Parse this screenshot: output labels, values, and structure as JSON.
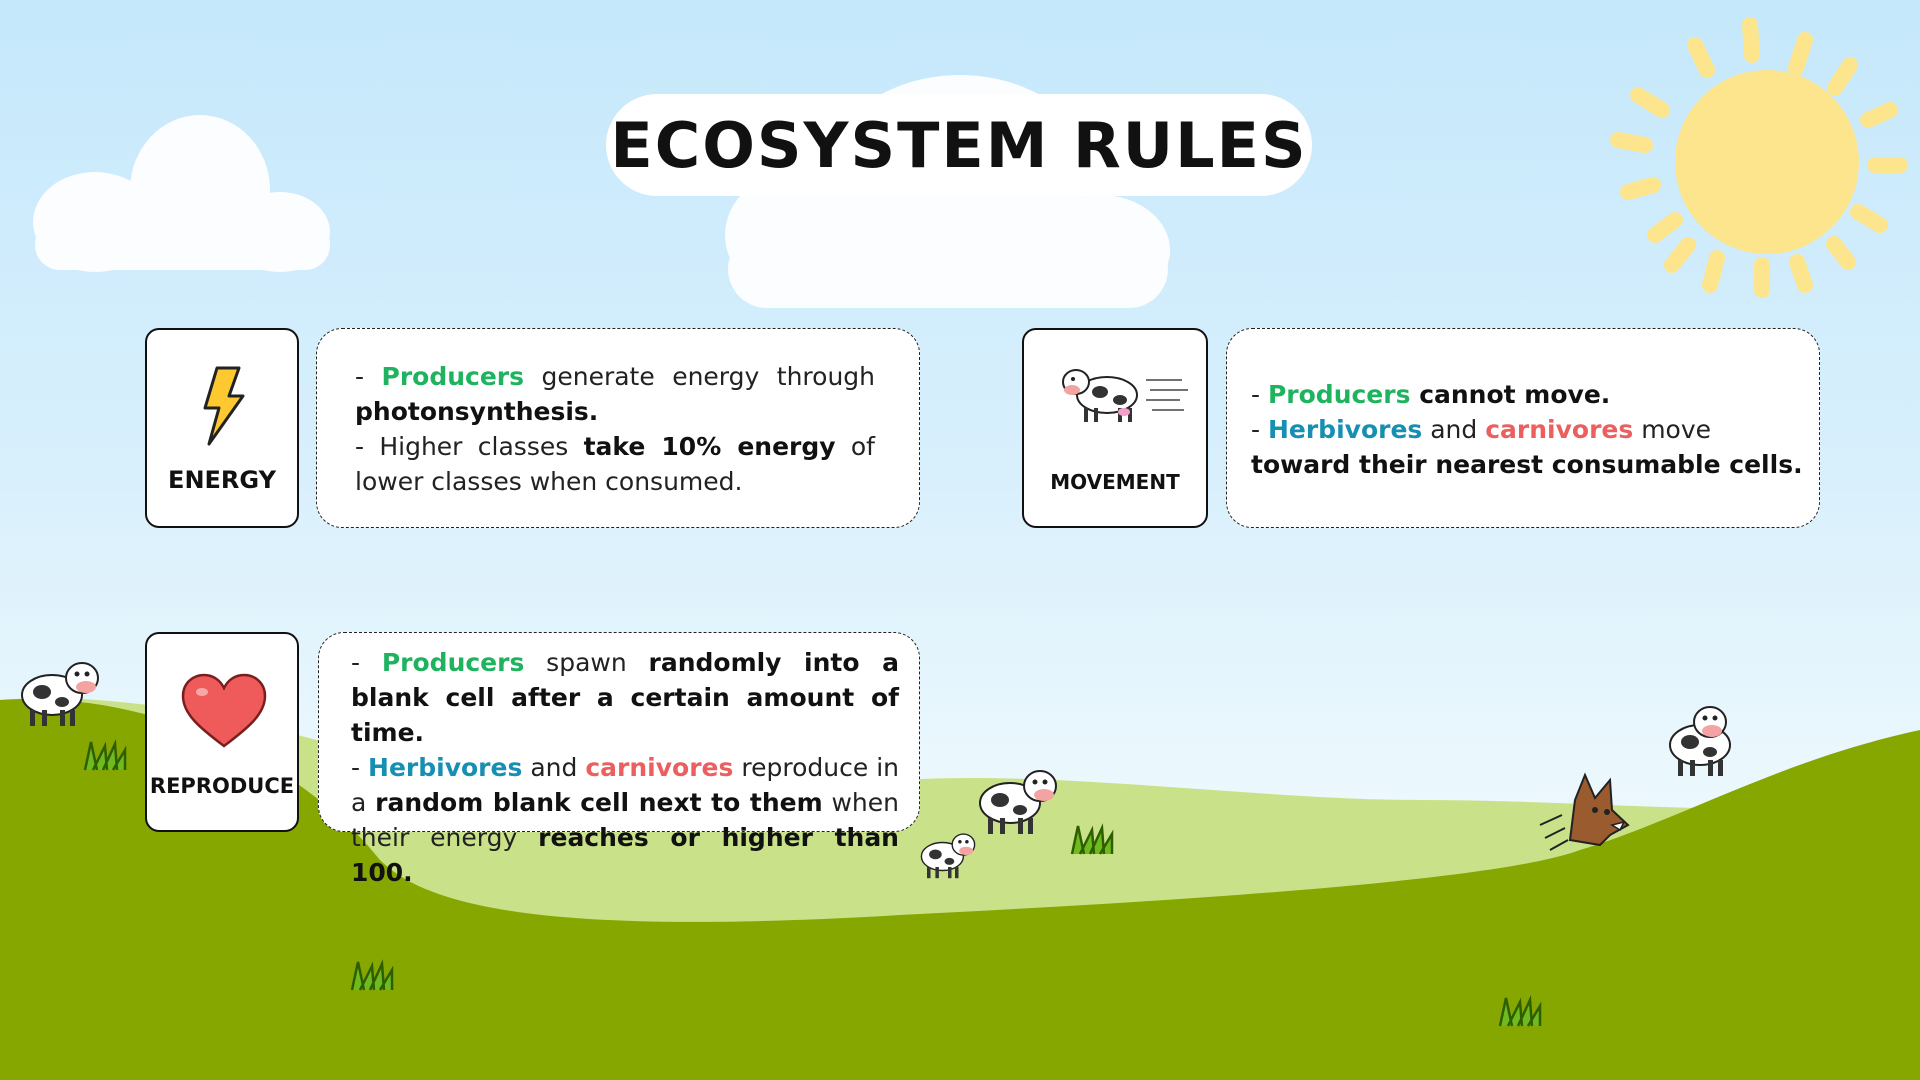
{
  "title": "ECOSYSTEM RULES",
  "colors": {
    "producers": "#1fb35f",
    "herbivores": "#178fb3",
    "carnivores": "#ec5f5f",
    "grass_light": "#c9e28a",
    "grass_dark": "#86a600",
    "sun": "#fde58d"
  },
  "cards": {
    "energy": {
      "label": "ENERGY",
      "icon": "lightning-icon",
      "line1": {
        "prefix": "- ",
        "producers": "Producers",
        "middle": " generate energy through ",
        "bold": "photonsynthesis."
      },
      "line2": {
        "prefix": "- Higher classes ",
        "bold": "take 10% energy",
        "suffix": " of lower classes when consumed."
      }
    },
    "movement": {
      "label": "MOVEMENT",
      "icon": "running-cow-icon",
      "line1": {
        "prefix": "- ",
        "producers": "Producers",
        "bold": " cannot move."
      },
      "line2": {
        "prefix": "- ",
        "herbivores": "Herbivores",
        "and": " and ",
        "carnivores": "carnivores",
        "middle": " move ",
        "bold": "toward their nearest consumable cells."
      }
    },
    "reproduce": {
      "label": "REPRODUCE",
      "icon": "heart-icon",
      "line1": {
        "prefix": "- ",
        "producers": "Producers",
        "middle": " spawn ",
        "bold": "randomly into a blank cell after a certain amount of time."
      },
      "line2": {
        "prefix": "- ",
        "herbivores": "Herbivores",
        "and": " and ",
        "carnivores": "carnivores",
        "middle": " reproduce in a ",
        "bold1": "random blank cell next to them",
        "middle2": " when their energy ",
        "bold2": "reaches or higher than 100."
      }
    }
  }
}
